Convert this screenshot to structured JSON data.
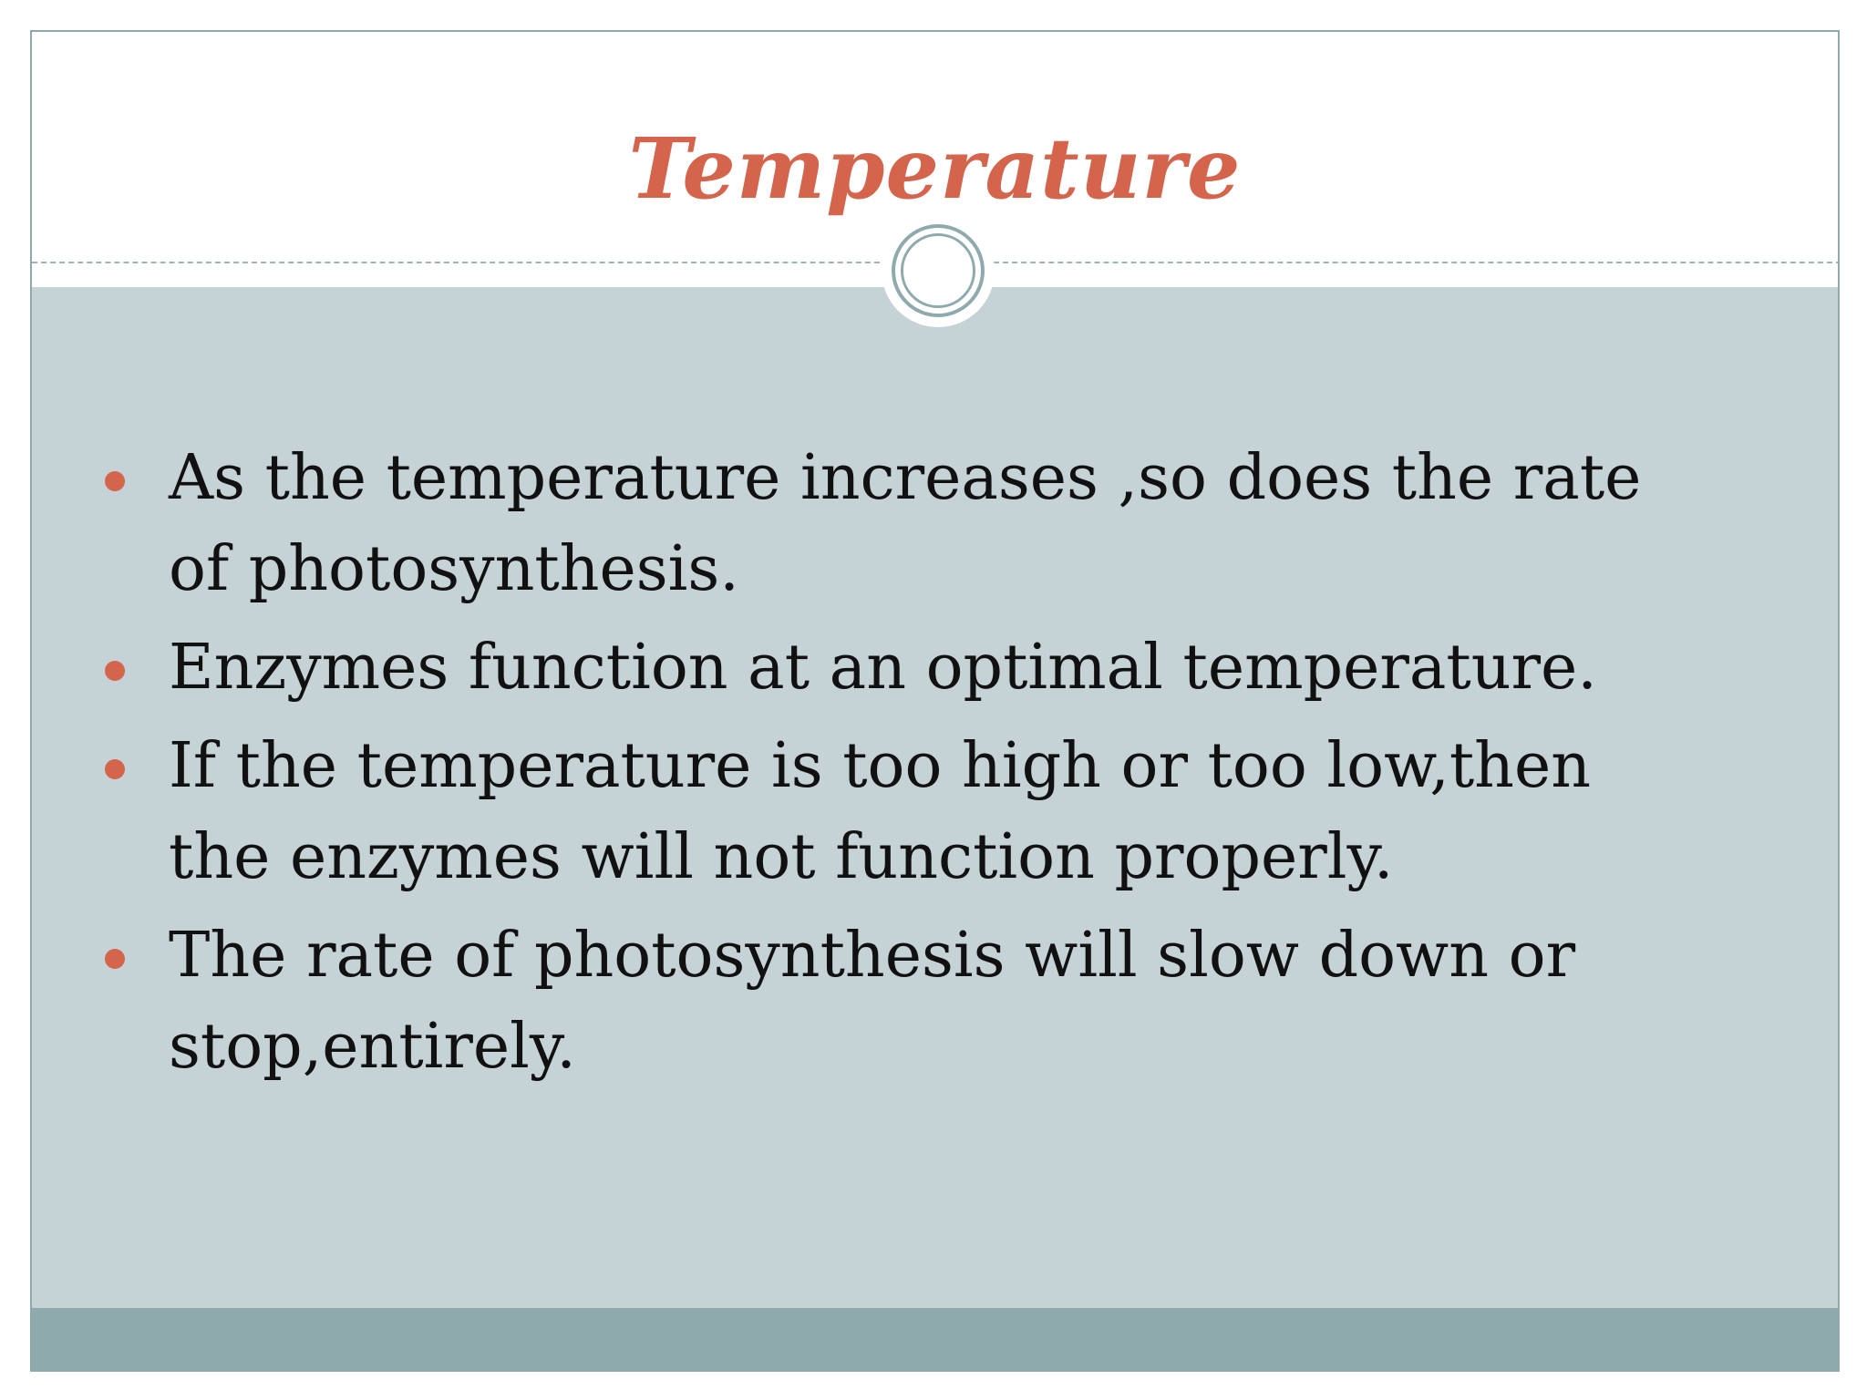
{
  "slide": {
    "title": "Temperature",
    "bullets": [
      "As the temperature increases ,so does the rate of photosynthesis.",
      "Enzymes function at an optimal temperature.",
      "If the temperature is too high or too low,then the enzymes will not function properly.",
      "The rate of photosynthesis will slow down or stop,entirely."
    ]
  },
  "colors": {
    "title": "#d4654c",
    "bullet_marker": "#d4654c",
    "content_background": "#c5d2d6",
    "footer_band": "#8faaad",
    "ring": "#8faaad"
  }
}
